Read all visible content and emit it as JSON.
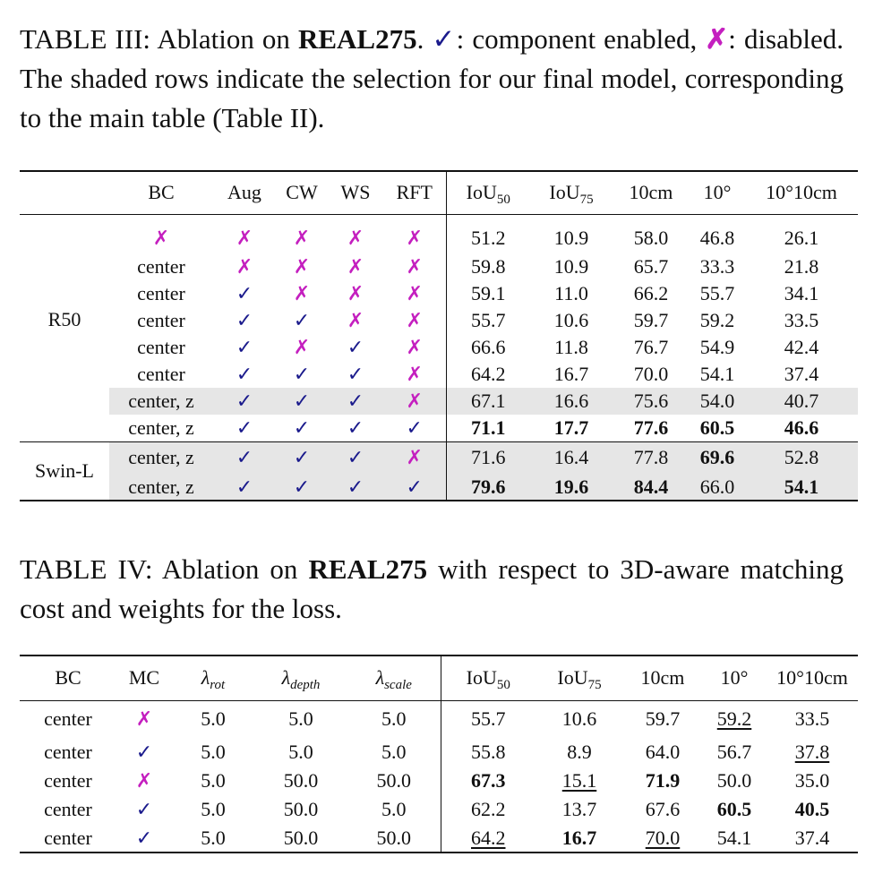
{
  "table3": {
    "caption": {
      "prefix": "TABLE III: Ablation on ",
      "dataset": "REAL275",
      "check_glyph": "✓",
      "after_check": ": component enabled, ",
      "x_glyph": "✗",
      "after_x": ": disabled. The shaded rows indicate the selection for our final model, corresponding to the main table (Table II)."
    },
    "headers": {
      "bc": "BC",
      "aug": "Aug",
      "cw": "CW",
      "ws": "WS",
      "rft": "RFT",
      "iou50": "IoU",
      "iou50_sub": "50",
      "iou75": "IoU",
      "iou75_sub": "75",
      "cm10": "10cm",
      "deg10": "10°",
      "deg10cm10": "10°10cm"
    },
    "groups": {
      "r50": "R50",
      "swin": "Swin-L"
    },
    "rows": [
      {
        "bc": "✗",
        "aug": "✗",
        "cw": "✗",
        "ws": "✗",
        "rft": "✗",
        "iou50": "51.2",
        "iou75": "10.9",
        "cm10": "58.0",
        "deg10": "46.8",
        "deg10cm10": "26.1"
      },
      {
        "bc": "center",
        "aug": "✗",
        "cw": "✗",
        "ws": "✗",
        "rft": "✗",
        "iou50": "59.8",
        "iou75": "10.9",
        "cm10": "65.7",
        "deg10": "33.3",
        "deg10cm10": "21.8"
      },
      {
        "bc": "center",
        "aug": "✓",
        "cw": "✗",
        "ws": "✗",
        "rft": "✗",
        "iou50": "59.1",
        "iou75": "11.0",
        "cm10": "66.2",
        "deg10": "55.7",
        "deg10cm10": "34.1"
      },
      {
        "bc": "center",
        "aug": "✓",
        "cw": "✓",
        "ws": "✗",
        "rft": "✗",
        "iou50": "55.7",
        "iou75": "10.6",
        "cm10": "59.7",
        "deg10": "59.2",
        "deg10cm10": "33.5"
      },
      {
        "bc": "center",
        "aug": "✓",
        "cw": "✗",
        "ws": "✓",
        "rft": "✗",
        "iou50": "66.6",
        "iou75": "11.8",
        "cm10": "76.7",
        "deg10": "54.9",
        "deg10cm10": "42.4"
      },
      {
        "bc": "center",
        "aug": "✓",
        "cw": "✓",
        "ws": "✓",
        "rft": "✗",
        "iou50": "64.2",
        "iou75": "16.7",
        "cm10": "70.0",
        "deg10": "54.1",
        "deg10cm10": "37.4"
      },
      {
        "bc": "center, z",
        "aug": "✓",
        "cw": "✓",
        "ws": "✓",
        "rft": "✗",
        "iou50": "67.1",
        "iou75": "16.6",
        "cm10": "75.6",
        "deg10": "54.0",
        "deg10cm10": "40.7"
      },
      {
        "bc": "center, z",
        "aug": "✓",
        "cw": "✓",
        "ws": "✓",
        "rft": "✓",
        "iou50": "71.1",
        "iou75": "17.7",
        "cm10": "77.6",
        "deg10": "60.5",
        "deg10cm10": "46.6"
      },
      {
        "bc": "center, z",
        "aug": "✓",
        "cw": "✓",
        "ws": "✓",
        "rft": "✗",
        "iou50": "71.6",
        "iou75": "16.4",
        "cm10": "77.8",
        "deg10": "69.6",
        "deg10cm10": "52.8"
      },
      {
        "bc": "center, z",
        "aug": "✓",
        "cw": "✓",
        "ws": "✓",
        "rft": "✓",
        "iou50": "79.6",
        "iou75": "19.6",
        "cm10": "84.4",
        "deg10": "66.0",
        "deg10cm10": "54.1"
      }
    ]
  },
  "table4": {
    "caption": {
      "prefix": "TABLE IV: Ablation on ",
      "dataset": "REAL275",
      "suffix": " with respect to 3D-aware matching cost and weights for the loss."
    },
    "headers": {
      "bc": "BC",
      "mc": "MC",
      "lambda": "λ",
      "rot_sub": "rot",
      "depth_sub": "depth",
      "scale_sub": "scale",
      "iou50": "IoU",
      "iou50_sub": "50",
      "iou75": "IoU",
      "iou75_sub": "75",
      "cm10": "10cm",
      "deg10": "10°",
      "deg10cm10": "10°10cm"
    },
    "rows": [
      {
        "bc": "center",
        "mc": "✗",
        "rot": "5.0",
        "depth": "5.0",
        "scale": "5.0",
        "iou50": "55.7",
        "iou75": "10.6",
        "cm10": "59.7",
        "deg10": "59.2",
        "deg10cm10": "33.5"
      },
      {
        "bc": "center",
        "mc": "✓",
        "rot": "5.0",
        "depth": "5.0",
        "scale": "5.0",
        "iou50": "55.8",
        "iou75": "8.9",
        "cm10": "64.0",
        "deg10": "56.7",
        "deg10cm10": "37.8"
      },
      {
        "bc": "center",
        "mc": "✗",
        "rot": "5.0",
        "depth": "50.0",
        "scale": "50.0",
        "iou50": "67.3",
        "iou75": "15.1",
        "cm10": "71.9",
        "deg10": "50.0",
        "deg10cm10": "35.0"
      },
      {
        "bc": "center",
        "mc": "✓",
        "rot": "5.0",
        "depth": "50.0",
        "scale": "5.0",
        "iou50": "62.2",
        "iou75": "13.7",
        "cm10": "67.6",
        "deg10": "60.5",
        "deg10cm10": "40.5"
      },
      {
        "bc": "center",
        "mc": "✓",
        "rot": "5.0",
        "depth": "50.0",
        "scale": "50.0",
        "iou50": "64.2",
        "iou75": "16.7",
        "cm10": "70.0",
        "deg10": "54.1",
        "deg10cm10": "37.4"
      }
    ]
  }
}
